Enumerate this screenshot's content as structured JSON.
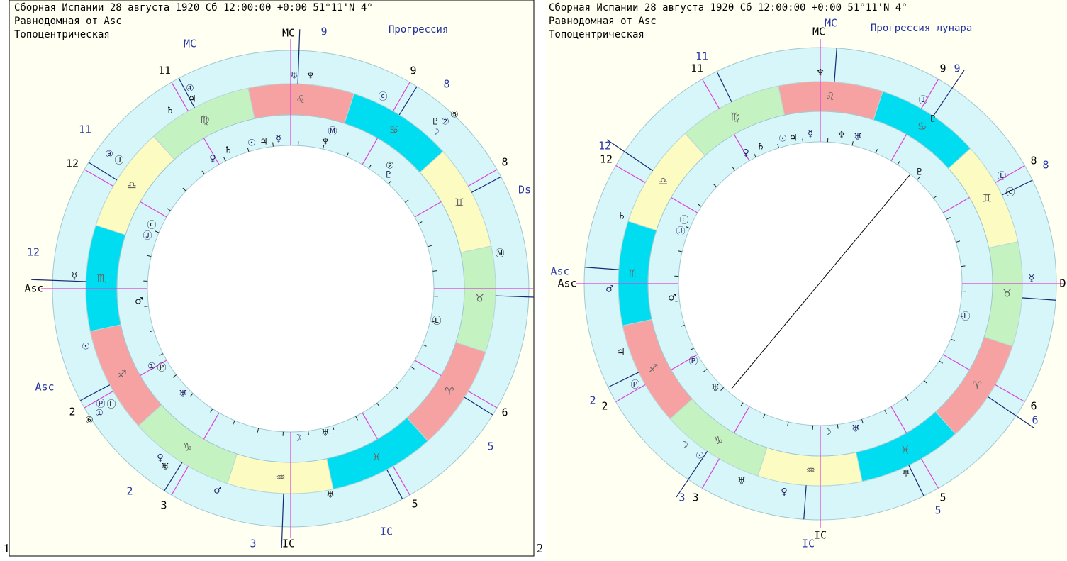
{
  "panel_numbers": [
    "1",
    "2"
  ],
  "signs": [
    "♈",
    "♉",
    "♊",
    "♋",
    "♌",
    "♍",
    "♎",
    "♏",
    "♐",
    "♑",
    "♒",
    "♓"
  ],
  "panels": [
    {
      "header": [
        "Сборная Испании  28 августа 1920  Сб  12:00:00 +0:00 51°11'N  4°",
        "Равнодомная от Asc",
        "Топоцентрическая"
      ],
      "title": "Прогрессия",
      "labels": [
        "MC",
        "Asc",
        "IC",
        "MC",
        "Asc",
        "IC",
        "Ds",
        "11",
        "12",
        "2",
        "3",
        "5",
        "6",
        "8",
        "9",
        "9",
        "8",
        "11",
        "12",
        "2",
        "3",
        "5"
      ],
      "planets": [
        "☿",
        "☉",
        "♄",
        "④",
        "♃",
        "♅",
        "♆",
        "ⓒ",
        "♇",
        "②",
        "⑤",
        "☽",
        "Ⓜ",
        "③",
        "Ⓙ",
        "Ⓟ",
        "Ⓛ",
        "①",
        "⑥",
        "♀",
        "♅",
        "♂",
        "♅",
        "♀",
        "♄",
        "☉",
        "♃",
        "☿",
        "♆",
        "Ⓜ",
        "②",
        "♇",
        "ⓒ",
        "Ⓙ",
        "♂",
        "①",
        "Ⓟ",
        "♅",
        "Ⓛ",
        "☽",
        "♅"
      ]
    },
    {
      "header": [
        "Сборная Испании  28 августа 1920  Сб  12:00:00 +0:00 51°11'N  4°",
        "Равнодомная от Asc",
        "Топоцентрическая"
      ],
      "title": "Прогрессия лунара",
      "labels": [
        "MC",
        "Asc",
        "IC",
        "MC",
        "Asc",
        "IC",
        "D",
        "11",
        "12",
        "2",
        "3",
        "5",
        "6",
        "8",
        "9",
        "11",
        "12",
        "2",
        "3",
        "5",
        "6",
        "8",
        "9"
      ],
      "planets": [
        "♆",
        "Ⓙ",
        "♇",
        "Ⓛ",
        "ⓒ",
        "☿",
        "♄",
        "♂",
        "♃",
        "Ⓟ",
        "☽",
        "☉",
        "♅",
        "♀",
        "♅",
        "♀",
        "♄",
        "☉",
        "♃",
        "☿",
        "♆",
        "♅",
        "ⓒ",
        "Ⓙ",
        "♂",
        "Ⓟ",
        "♅",
        "Ⓛ",
        "☽",
        "♅",
        "♇"
      ]
    }
  ]
}
